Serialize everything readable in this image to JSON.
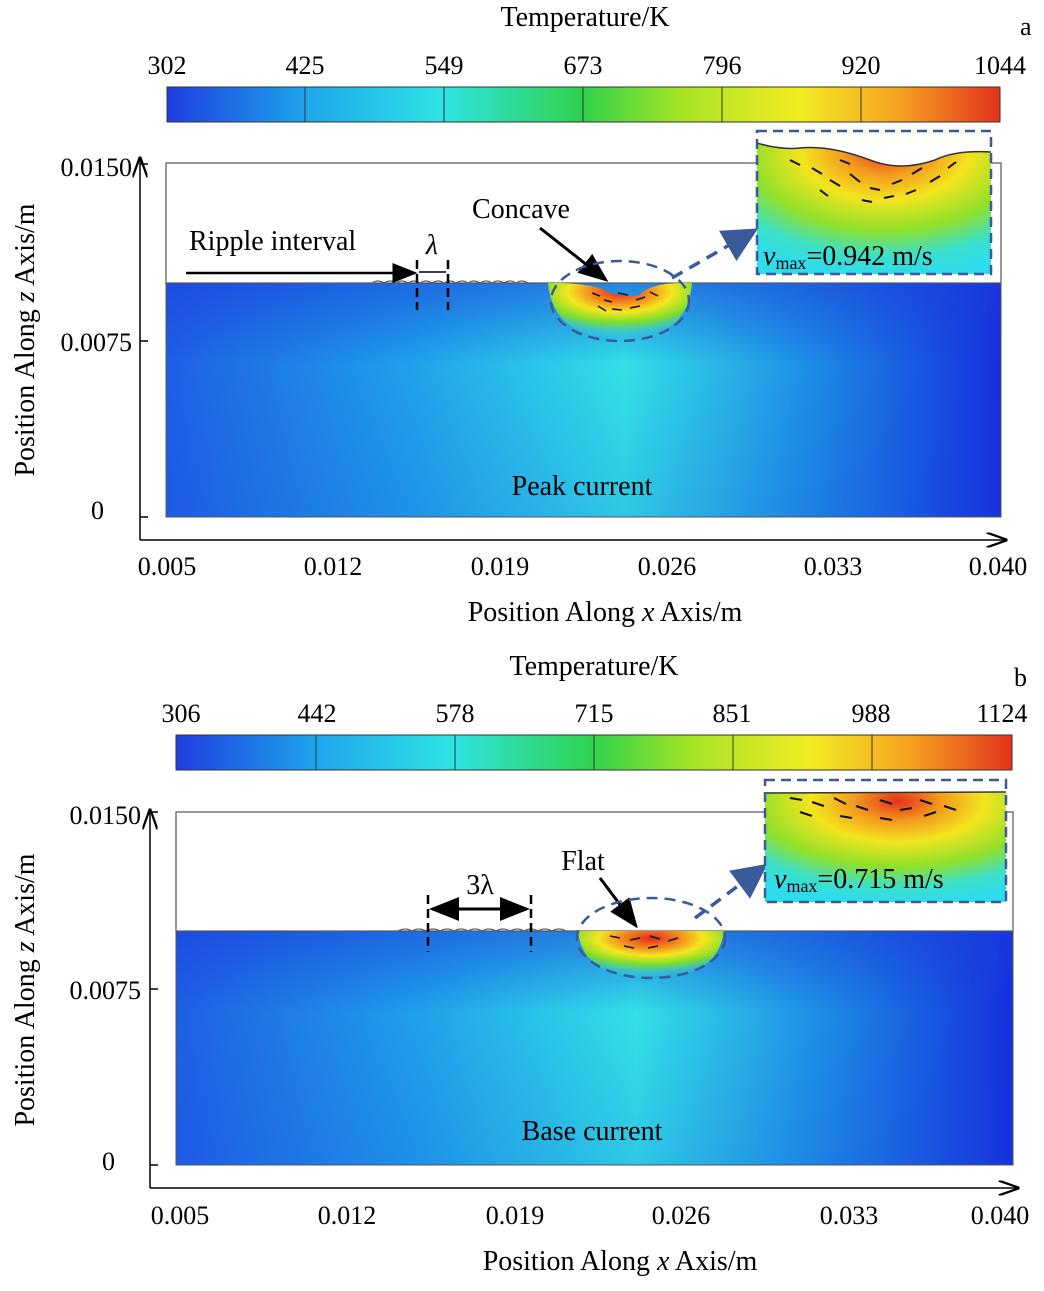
{
  "panels": [
    {
      "letter": "a",
      "colorbar_title": "Temperature/K",
      "colorbar_ticks": [
        "302",
        "425",
        "549",
        "673",
        "796",
        "920",
        "1044"
      ],
      "y_ticks": [
        "0.0150",
        "0.0075",
        "0"
      ],
      "x_ticks": [
        "0.005",
        "0.012",
        "0.019",
        "0.026",
        "0.033",
        "0.040"
      ],
      "y_label_pre": "Position Along ",
      "y_label_var": "z",
      "y_label_post": " Axis/m",
      "x_label_pre": "Position Along ",
      "x_label_var": "x",
      "x_label_post": " Axis/m",
      "ripple_label": "Ripple  interval",
      "lambda_label": "λ",
      "pool_label": "Concave",
      "current_label": "Peak current",
      "vmax_v": "v",
      "vmax_sub": "max",
      "vmax_value": "=0.942 m/s"
    },
    {
      "letter": "b",
      "colorbar_title": "Temperature/K",
      "colorbar_ticks": [
        "306",
        "442",
        "578",
        "715",
        "851",
        "988",
        "1124"
      ],
      "y_ticks": [
        "0.0150",
        "0.0075",
        "0"
      ],
      "x_ticks": [
        "0.005",
        "0.012",
        "0.019",
        "0.026",
        "0.033",
        "0.040"
      ],
      "y_label_pre": "Position Along ",
      "y_label_var": "z",
      "y_label_post": " Axis/m",
      "x_label_pre": "Position Along ",
      "x_label_var": "x",
      "x_label_post": " Axis/m",
      "lambda_label": "3λ",
      "pool_label": "Flat",
      "current_label": "Base current",
      "vmax_v": "v",
      "vmax_sub": "max",
      "vmax_value": "=0.715 m/s"
    }
  ],
  "colors": {
    "cold": "#1a3fe0",
    "cyan": "#2de0e8",
    "green": "#2ecc2e",
    "yellow": "#f2e81a",
    "hot": "#e23a1a",
    "annotation_dash": "#3a5a9a"
  }
}
